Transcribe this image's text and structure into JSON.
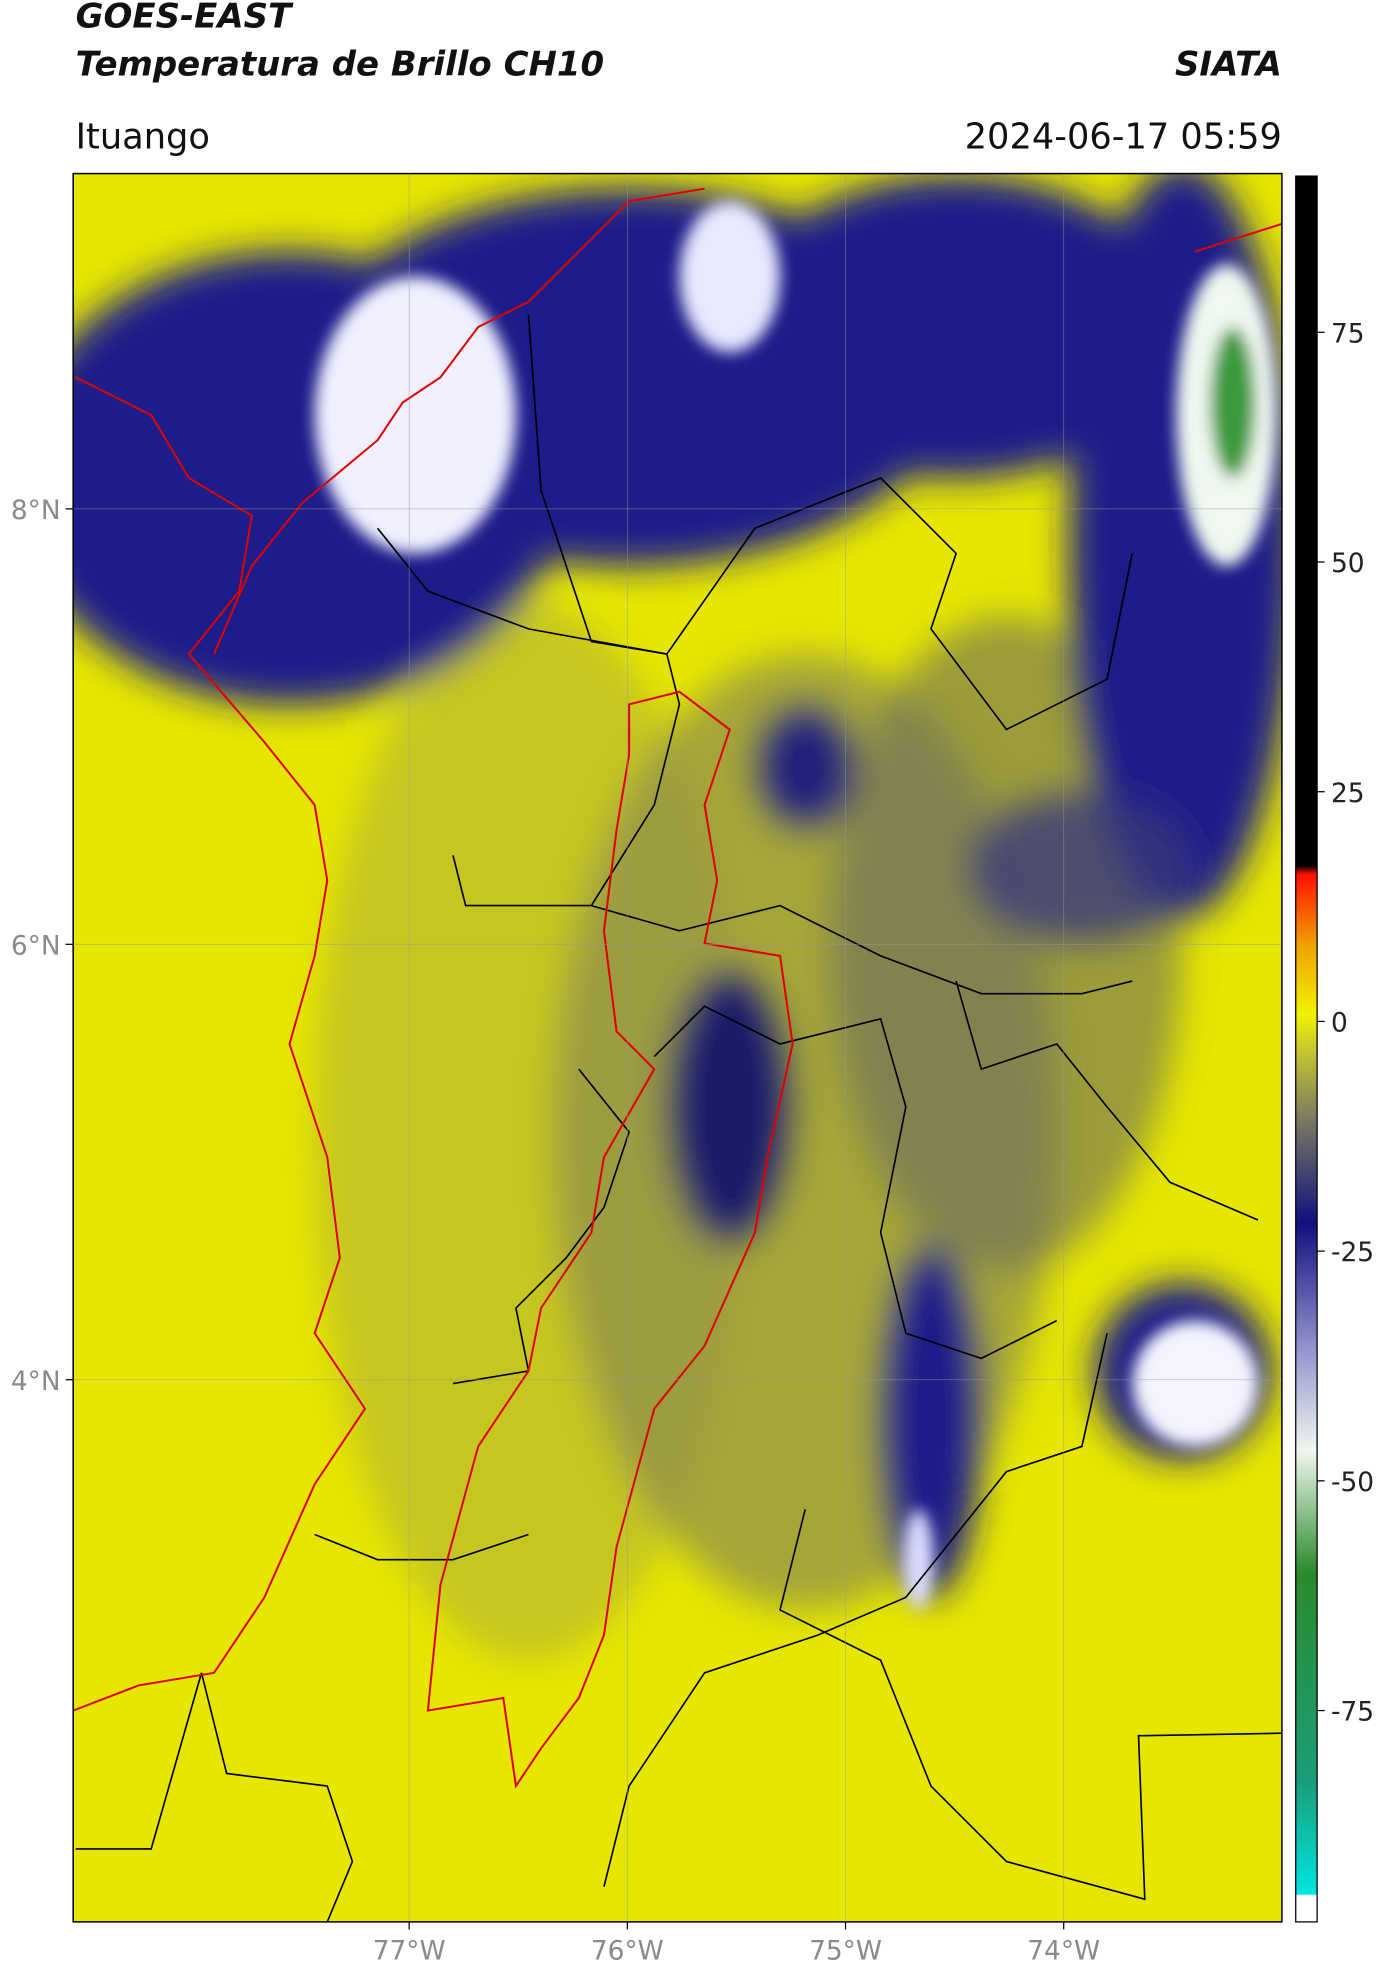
{
  "chart_data": {
    "type": "map",
    "title": "GOES-EAST",
    "subtitle": "Temperatura de Brillo CH10",
    "source": "SIATA",
    "location": "Ituango",
    "datetime": "2024-06-17 05:59",
    "xlim": [
      -78.54,
      -73.0
    ],
    "xticks": [
      {
        "value": -77,
        "label": "77°W"
      },
      {
        "value": -76,
        "label": "76°W"
      },
      {
        "value": -75,
        "label": "75°W"
      },
      {
        "value": -74,
        "label": "74°W"
      }
    ],
    "ylim": [
      1.51,
      9.54
    ],
    "yticks": [
      {
        "value": 4,
        "label": "4°N"
      },
      {
        "value": 6,
        "label": "6°N"
      },
      {
        "value": 8,
        "label": "8°N"
      }
    ],
    "grid": true,
    "colorbar": {
      "lim": [
        -98,
        92
      ],
      "ticks": [
        -75,
        -50,
        -25,
        0,
        25,
        50,
        75
      ]
    }
  }
}
